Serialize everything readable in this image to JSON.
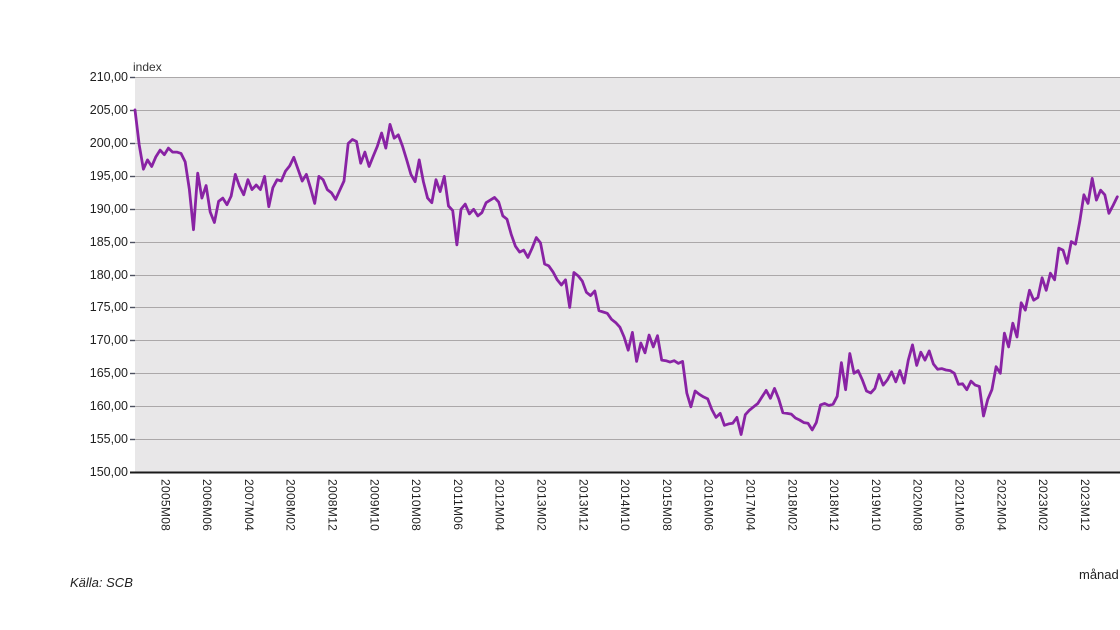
{
  "axis_title": "index",
  "source_label": "Källa: SCB",
  "x_unit_label": "månad",
  "colors": {
    "line": "#8923a4",
    "plot_background": "#e8e7e8",
    "gridline": "#aba8a9",
    "axis_line": "#1a1a1a",
    "tick_mark": "#4d5160",
    "text": "#222222"
  },
  "chart_data": {
    "type": "line",
    "title": "",
    "ylabel": "index",
    "xlabel": "månad",
    "source": "Källa: SCB",
    "legend": "none",
    "grid": "horizontal",
    "ylim": [
      150,
      210
    ],
    "ytick_step": 5,
    "ytick_labels": [
      "210,00",
      "205,00",
      "200,00",
      "195,00",
      "190,00",
      "185,00",
      "180,00",
      "175,00",
      "170,00",
      "165,00",
      "160,00",
      "155,00",
      "150,00"
    ],
    "xtick_labels": [
      "2005M08",
      "2006M06",
      "2007M04",
      "2008M02",
      "2008M12",
      "2009M10",
      "2010M08",
      "2011M06",
      "2012M04",
      "2013M02",
      "2013M12",
      "2014M10",
      "2015M08",
      "2016M06",
      "2017M04",
      "2018M02",
      "2018M12",
      "2019M10",
      "2020M08",
      "2021M06",
      "2022M04",
      "2023M02",
      "2023M12"
    ],
    "start_month": "2005M01",
    "frequency": "monthly",
    "xtick_start_index": 7,
    "xtick_step_months": 10,
    "series": [
      {
        "name": "index",
        "color": "#8923a4",
        "values": [
          205.0,
          199.7,
          196.0,
          197.4,
          196.4,
          197.9,
          198.9,
          198.2,
          199.2,
          198.6,
          198.6,
          198.4,
          197.1,
          193.0,
          186.8,
          195.4,
          191.6,
          193.5,
          189.5,
          187.9,
          191.1,
          191.6,
          190.6,
          191.9,
          195.2,
          193.4,
          192.1,
          194.4,
          192.9,
          193.6,
          192.9,
          194.9,
          190.3,
          193.2,
          194.4,
          194.2,
          195.7,
          196.5,
          197.8,
          196.0,
          194.2,
          195.2,
          193.1,
          190.8,
          194.9,
          194.4,
          192.9,
          192.4,
          191.4,
          192.8,
          194.2,
          199.9,
          200.5,
          200.2,
          196.9,
          198.6,
          196.4,
          198.0,
          199.5,
          201.5,
          199.2,
          202.8,
          200.7,
          201.2,
          199.5,
          197.4,
          195.2,
          194.1,
          197.4,
          194.1,
          191.6,
          190.9,
          194.4,
          192.6,
          194.9,
          190.4,
          189.7,
          184.5,
          189.9,
          190.7,
          189.2,
          189.9,
          188.9,
          189.4,
          190.9,
          191.3,
          191.7,
          191.0,
          188.9,
          188.4,
          186.1,
          184.3,
          183.4,
          183.7,
          182.6,
          184.0,
          185.6,
          184.8,
          181.6,
          181.3,
          180.4,
          179.2,
          178.4,
          179.2,
          175.0,
          180.3,
          179.8,
          179.0,
          177.3,
          176.8,
          177.5,
          174.5,
          174.3,
          174.1,
          173.2,
          172.7,
          172.0,
          170.5,
          168.5,
          171.2,
          166.8,
          169.6,
          168.1,
          170.8,
          169.0,
          170.7,
          167.0,
          166.9,
          166.7,
          166.9,
          166.5,
          166.8,
          162.0,
          159.9,
          162.3,
          161.8,
          161.4,
          161.1,
          159.5,
          158.3,
          158.9,
          157.1,
          157.3,
          157.4,
          158.3,
          155.7,
          158.7,
          159.4,
          159.9,
          160.4,
          161.4,
          162.4,
          161.2,
          162.7,
          161.1,
          159.0,
          158.9,
          158.8,
          158.2,
          157.9,
          157.5,
          157.4,
          156.4,
          157.5,
          160.2,
          160.4,
          160.1,
          160.3,
          161.5,
          166.6,
          162.5,
          168.0,
          165.0,
          165.4,
          164.0,
          162.3,
          162.0,
          162.7,
          164.8,
          163.2,
          164.0,
          165.2,
          163.7,
          165.4,
          163.5,
          167.0,
          169.3,
          166.2,
          168.2,
          167.0,
          168.4,
          166.4,
          165.6,
          165.7,
          165.5,
          165.4,
          165.0,
          163.3,
          163.4,
          162.5,
          163.8,
          163.2,
          163.0,
          158.5,
          161.0,
          162.5,
          166.0,
          165.0,
          171.1,
          169.0,
          172.6,
          170.5,
          175.7,
          174.6,
          177.6,
          176.1,
          176.5,
          179.5,
          177.6,
          180.2,
          179.2,
          184.0,
          183.7,
          181.7,
          185.0,
          184.6,
          188.0,
          192.1,
          190.8,
          194.6,
          191.3,
          192.8,
          192.1,
          189.3,
          190.5,
          191.8
        ]
      }
    ]
  }
}
